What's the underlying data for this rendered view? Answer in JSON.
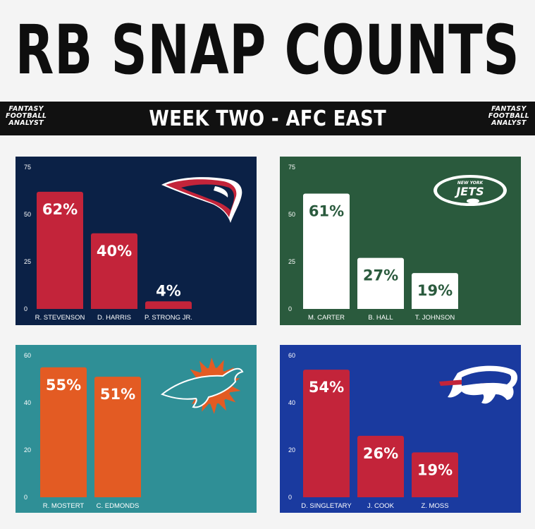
{
  "header": {
    "title": "RB SNAP COUNTS",
    "subtitle": "WEEK TWO - AFC EAST",
    "brand_left": [
      "FANTASY",
      "FOOTBALL",
      "ANALYST"
    ],
    "brand_right": [
      "FANTASY",
      "FOOTBALL",
      "ANALYST"
    ]
  },
  "chart_data": [
    {
      "type": "bar",
      "team": "New England Patriots",
      "logo": "patriots-logo",
      "categories": [
        "R. STEVENSON",
        "D. HARRIS",
        "P. STRONG JR."
      ],
      "values": [
        62,
        40,
        4
      ],
      "labels": [
        "62%",
        "40%",
        "4%"
      ],
      "yticks": [
        0,
        25,
        50,
        75
      ],
      "ylim": [
        0,
        75
      ],
      "bg_color": "#0b2146",
      "bar_color": "#c3243a",
      "label_color": "#ffffff",
      "value_label_color": "#ffffff"
    },
    {
      "type": "bar",
      "team": "New York Jets",
      "logo": "jets-logo",
      "logo_text": [
        "NEW YORK",
        "JETS"
      ],
      "categories": [
        "M. CARTER",
        "B. HALL",
        "T. JOHNSON"
      ],
      "values": [
        61,
        27,
        19
      ],
      "labels": [
        "61%",
        "27%",
        "19%"
      ],
      "yticks": [
        0,
        25,
        50,
        75
      ],
      "ylim": [
        0,
        75
      ],
      "bg_color": "#2a5a3d",
      "bar_color": "#ffffff",
      "label_color": "#ffffff",
      "value_label_color": "#2a5a3d"
    },
    {
      "type": "bar",
      "team": "Miami Dolphins",
      "logo": "dolphins-logo",
      "categories": [
        "R. MOSTERT",
        "C. EDMONDS"
      ],
      "values": [
        55,
        51
      ],
      "labels": [
        "55%",
        "51%"
      ],
      "yticks": [
        0,
        20,
        40,
        60
      ],
      "ylim": [
        0,
        60
      ],
      "bg_color": "#2f8f96",
      "bar_color": "#e35b23",
      "label_color": "#ffffff",
      "value_label_color": "#ffffff"
    },
    {
      "type": "bar",
      "team": "Buffalo Bills",
      "logo": "bills-logo",
      "categories": [
        "D. SINGLETARY",
        "J. COOK",
        "Z. MOSS"
      ],
      "values": [
        54,
        26,
        19
      ],
      "labels": [
        "54%",
        "26%",
        "19%"
      ],
      "yticks": [
        0,
        20,
        40,
        60
      ],
      "ylim": [
        0,
        60
      ],
      "bg_color": "#1a3a9f",
      "bar_color": "#c3243a",
      "label_color": "#ffffff",
      "value_label_color": "#ffffff"
    }
  ]
}
